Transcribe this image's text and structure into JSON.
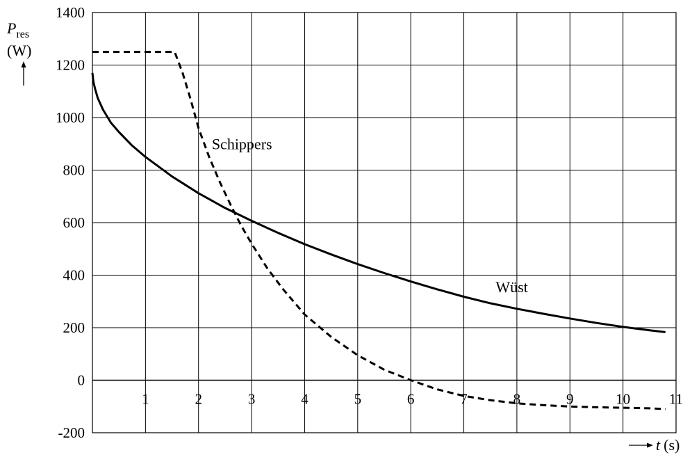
{
  "chart_data": {
    "type": "line",
    "xlabel": {
      "symbol": "t",
      "unit": "(s)"
    },
    "ylabel": {
      "symbol": "P",
      "subscript": "res",
      "unit": "(W)"
    },
    "xlim": [
      0,
      11
    ],
    "ylim": [
      -200,
      1400
    ],
    "x_ticks": [
      "1",
      "2",
      "3",
      "4",
      "5",
      "6",
      "7",
      "8",
      "9",
      "10",
      "11"
    ],
    "y_ticks": [
      "-200",
      "0",
      "200",
      "400",
      "600",
      "800",
      "1000",
      "1200",
      "1400"
    ],
    "grid": true,
    "series": [
      {
        "name": "Wüst",
        "style": "solid",
        "color": "#000000",
        "x": [
          0,
          0.02,
          0.05,
          0.1,
          0.2,
          0.35,
          0.5,
          0.75,
          1.0,
          1.5,
          2.0,
          2.5,
          3.0,
          3.5,
          4.0,
          4.5,
          5.0,
          5.5,
          6.0,
          6.5,
          7.0,
          7.5,
          8.0,
          8.5,
          9.0,
          9.5,
          10.0,
          10.5,
          10.8
        ],
        "y": [
          1170,
          1135,
          1110,
          1075,
          1030,
          980,
          945,
          893,
          850,
          776,
          712,
          656,
          607,
          561,
          518,
          479,
          442,
          408,
          376,
          346,
          318,
          293,
          272,
          253,
          235,
          218,
          203,
          190,
          183
        ]
      },
      {
        "name": "Schippers",
        "style": "dashed",
        "color": "#000000",
        "x": [
          0,
          0.5,
          1.0,
          1.55,
          1.7,
          1.85,
          2.0,
          2.2,
          2.4,
          2.6,
          2.8,
          3.0,
          3.3,
          3.6,
          4.0,
          4.5,
          5.0,
          5.5,
          6.0,
          6.5,
          7.0,
          7.5,
          8.0,
          8.5,
          9.0,
          9.5,
          10.0,
          10.5,
          10.8
        ],
        "y": [
          1250,
          1250,
          1250,
          1250,
          1170,
          1070,
          960,
          850,
          755,
          670,
          590,
          520,
          425,
          345,
          250,
          165,
          95,
          40,
          0,
          -35,
          -60,
          -76,
          -88,
          -95,
          -100,
          -103,
          -105,
          -107,
          -110
        ]
      }
    ],
    "annotations": [
      {
        "text": "Schippers",
        "series": "Schippers"
      },
      {
        "text": "Wüst",
        "series": "Wüst"
      }
    ]
  }
}
